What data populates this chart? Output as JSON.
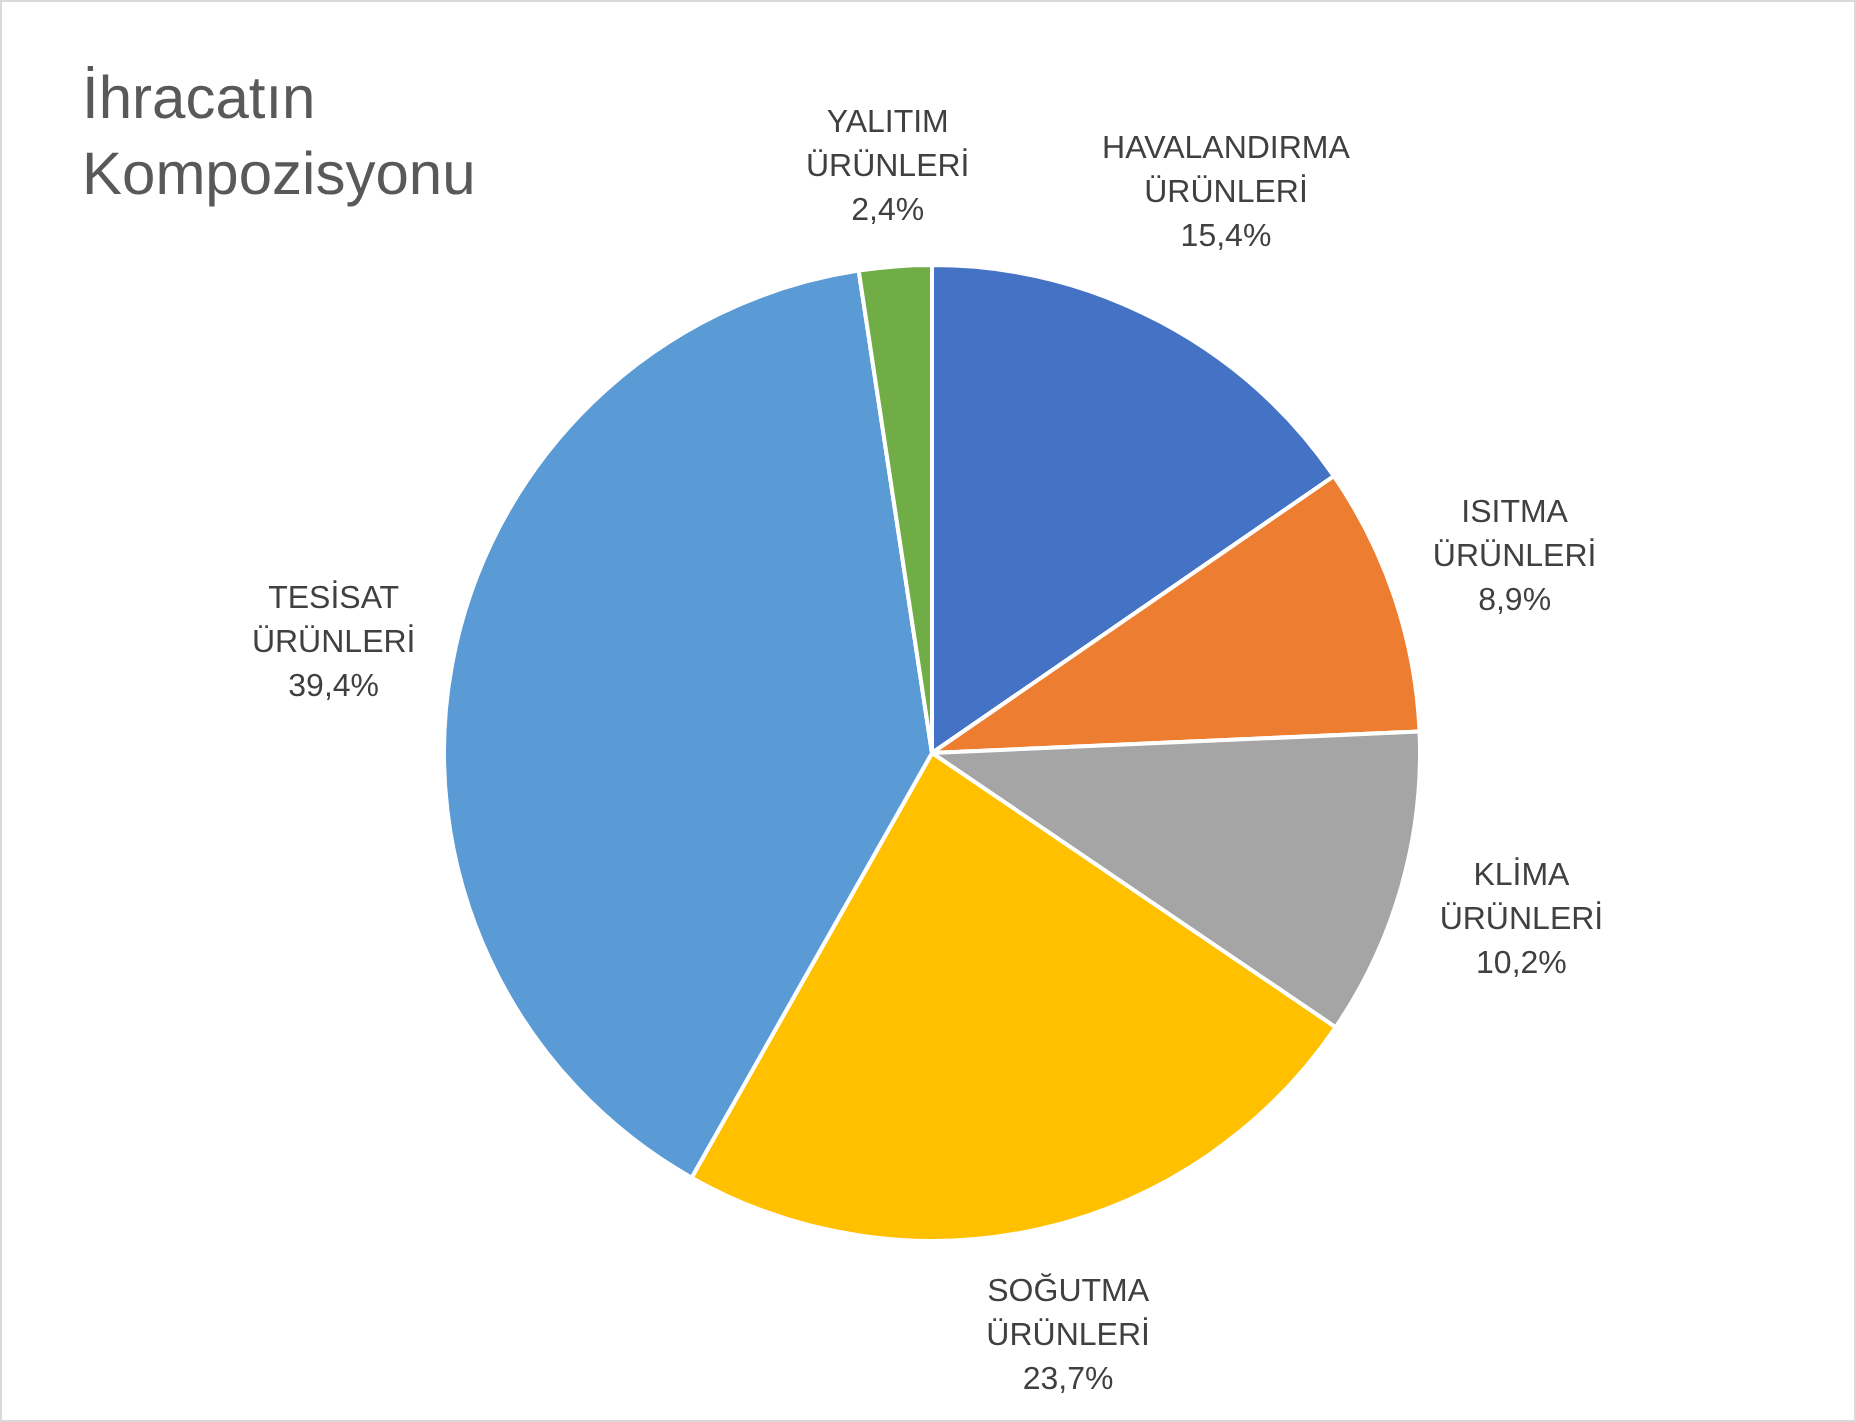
{
  "chart_data": {
    "type": "pie",
    "title": "İhracatın Kompozisyonu",
    "categories": [
      "HAVALANDIRMA ÜRÜNLERİ",
      "ISITMA ÜRÜNLERİ",
      "KLİMA ÜRÜNLERİ",
      "SOĞUTMA ÜRÜNLERİ",
      "TESİSAT ÜRÜNLERİ",
      "YALITIM ÜRÜNLERİ"
    ],
    "values": [
      15.4,
      8.9,
      10.2,
      23.7,
      39.4,
      2.4
    ],
    "value_labels": [
      "15,4%",
      "8,9%",
      "10,2%",
      "23,7%",
      "39,4%",
      "2,4%"
    ],
    "colors": [
      "#4472c4",
      "#ed7d31",
      "#a5a5a5",
      "#ffc000",
      "#5b9bd5",
      "#70ad47"
    ],
    "legend": false
  }
}
